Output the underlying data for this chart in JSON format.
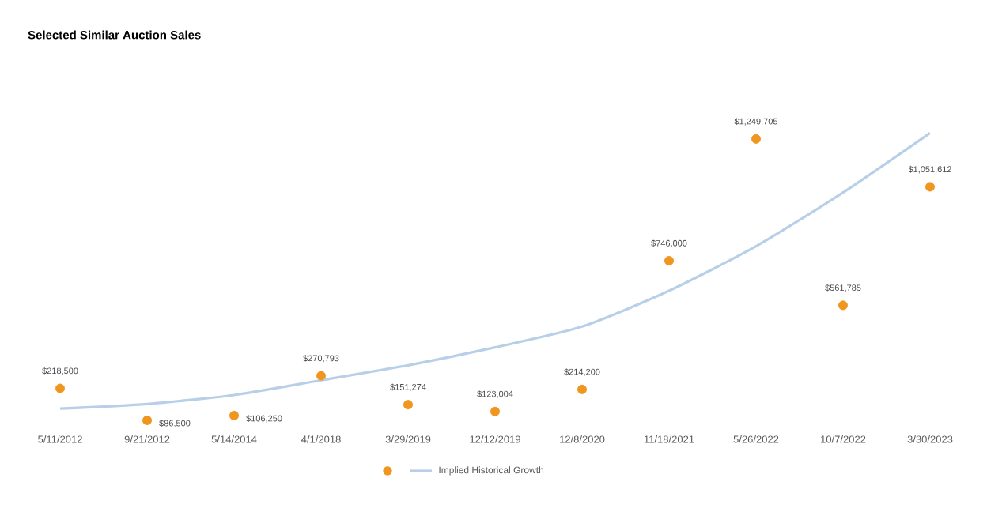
{
  "chart_data": {
    "type": "scatter",
    "title": "Selected Similar Auction Sales",
    "categories": [
      "5/11/2012",
      "9/21/2012",
      "5/14/2014",
      "4/1/2018",
      "3/29/2019",
      "12/12/2019",
      "12/8/2020",
      "11/18/2021",
      "5/26/2022",
      "10/7/2022",
      "3/30/2023"
    ],
    "legend": "bottom",
    "marker": "circle",
    "series": [
      {
        "color": "#f0961e",
        "values": [
          218500,
          86500,
          106250,
          270793,
          151274,
          123004,
          214200,
          746000,
          1249705,
          561785,
          1051612
        ],
        "value_labels": [
          "$218,500",
          "$86,500",
          "$106,250",
          "$270,793",
          "$151,274",
          "$123,004",
          "$214,200",
          "$746,000",
          "$1,249,705",
          "$561,785",
          "$1,051,612"
        ]
      },
      {
        "type": "line",
        "name": "Implied Historical Growth",
        "color": "#b8cfe8",
        "marker": "none",
        "values": [
          135000,
          154000,
          191000,
          252000,
          314000,
          388000,
          474000,
          622000,
          806000,
          1028000,
          1274000
        ]
      }
    ]
  }
}
